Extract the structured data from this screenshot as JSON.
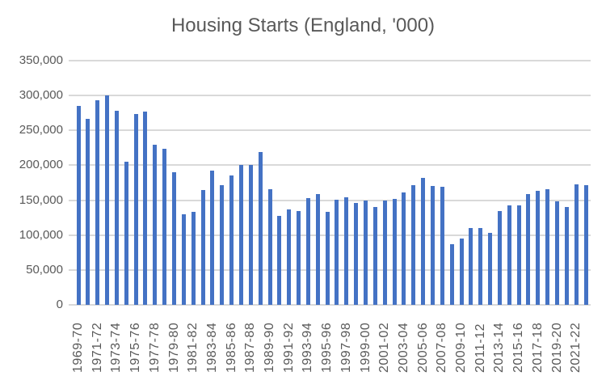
{
  "colors": {
    "bar": "#4472C4",
    "gridline": "#D9D9D9",
    "text": "#595959",
    "background": "#FFFFFF"
  },
  "chart_data": {
    "type": "bar",
    "title": "Housing Starts (England, '000)",
    "xlabel": "",
    "ylabel": "",
    "ylim": [
      0,
      350000
    ],
    "y_tick_step": 50000,
    "y_tick_labels": [
      "0",
      "50,000",
      "100,000",
      "150,000",
      "200,000",
      "250,000",
      "300,000",
      "350,000"
    ],
    "grid": true,
    "legend": false,
    "x_label_every": 2,
    "categories": [
      "1969-70",
      "1970-71",
      "1971-72",
      "1972-73",
      "1973-74",
      "1974-75",
      "1975-76",
      "1976-77",
      "1977-78",
      "1978-79",
      "1979-80",
      "1980-81",
      "1981-82",
      "1982-83",
      "1983-84",
      "1984-85",
      "1985-86",
      "1986-87",
      "1987-88",
      "1988-89",
      "1989-90",
      "1990-91",
      "1991-92",
      "1992-93",
      "1993-94",
      "1994-95",
      "1995-96",
      "1996-97",
      "1997-98",
      "1998-99",
      "1999-00",
      "2000-01",
      "2001-02",
      "2002-03",
      "2003-04",
      "2004-05",
      "2005-06",
      "2006-07",
      "2007-08",
      "2008-09",
      "2009-10",
      "2010-11",
      "2011-12",
      "2012-13",
      "2013-14",
      "2014-15",
      "2015-16",
      "2016-17",
      "2017-18",
      "2018-19",
      "2019-20",
      "2020-21",
      "2021-22",
      "2022-23"
    ],
    "values": [
      285000,
      267000,
      293000,
      300000,
      278000,
      205000,
      273000,
      277000,
      230000,
      224000,
      190000,
      130000,
      133000,
      165000,
      192000,
      171000,
      186000,
      200000,
      201000,
      219000,
      166000,
      127000,
      137000,
      134000,
      153000,
      159000,
      133000,
      151000,
      154000,
      146000,
      149000,
      140000,
      149000,
      152000,
      161000,
      171000,
      182000,
      170000,
      169000,
      87000,
      95000,
      110000,
      110000,
      103000,
      134000,
      143000,
      143000,
      159000,
      163000,
      166000,
      148000,
      140000,
      173000,
      172000
    ]
  }
}
